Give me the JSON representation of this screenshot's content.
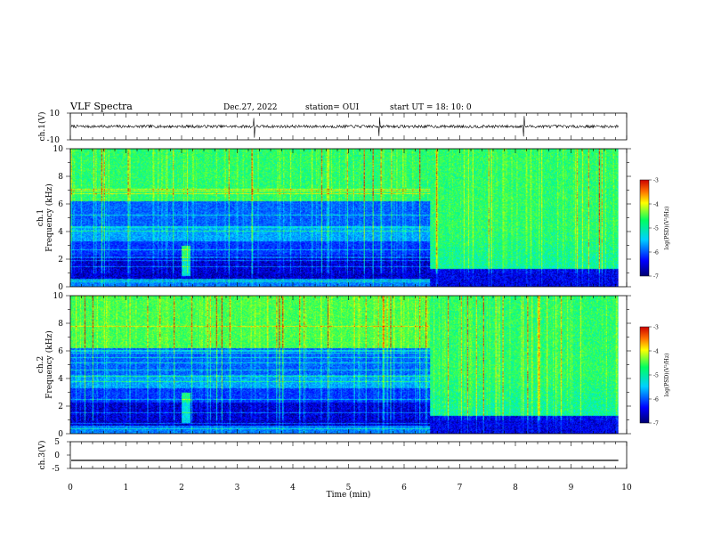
{
  "header": {
    "title": "VLF Spectra",
    "date": "Dec.27, 2022",
    "station": "station= OUI",
    "start_ut": "start UT =   18: 10: 0"
  },
  "colors": {
    "waveform": "#000000",
    "colormap": [
      "#000070",
      "#0000ff",
      "#00d0ff",
      "#00ff60",
      "#ffff00",
      "#ff7000",
      "#cc0000"
    ]
  },
  "chart_data": [
    {
      "type": "line",
      "panel": "ch1-waveform",
      "ylabel": "ch.1(V)",
      "ylim": [
        -10,
        10
      ],
      "yticks": [
        "10",
        "-10"
      ],
      "xlim": [
        0,
        10
      ],
      "baseline": 0,
      "spikes_min": [
        3.3,
        5.55,
        8.15
      ]
    },
    {
      "type": "heatmap",
      "panel": "ch1-spectrogram",
      "ylabel": "ch.1",
      "ylabel2": "Frequency (kHz)",
      "ylim": [
        0,
        10
      ],
      "yticks": [
        "0",
        "2",
        "4",
        "6",
        "8",
        "10"
      ],
      "xlim": [
        0,
        10
      ],
      "regime_change_min": 6.55,
      "colorbar": {
        "label": "log(PSD)(V²/Hz)",
        "range": [
          -7,
          -3
        ],
        "ticks": [
          "-3",
          "-4",
          "-5",
          "-6",
          "-7"
        ]
      }
    },
    {
      "type": "heatmap",
      "panel": "ch2-spectrogram",
      "ylabel": "ch.2",
      "ylabel2": "Frequency (kHz)",
      "ylim": [
        0,
        10
      ],
      "yticks": [
        "0",
        "2",
        "4",
        "6",
        "8",
        "10"
      ],
      "xlim": [
        0,
        10
      ],
      "regime_change_min": 6.55,
      "colorbar": {
        "label": "log(PSD)(V²/Hz)",
        "range": [
          -7,
          -3
        ],
        "ticks": [
          "-3",
          "-4",
          "-5",
          "-6",
          "-7"
        ]
      }
    },
    {
      "type": "line",
      "panel": "ch3-waveform",
      "ylabel": "ch.3(V)",
      "ylim": [
        -5,
        5
      ],
      "yticks": [
        "5",
        "0",
        "-5"
      ],
      "xlim": [
        0,
        10
      ],
      "value": -2
    }
  ],
  "xaxis": {
    "label": "Time (min)",
    "ticks": [
      "0",
      "1",
      "2",
      "3",
      "4",
      "5",
      "6",
      "7",
      "8",
      "9",
      "10"
    ]
  }
}
